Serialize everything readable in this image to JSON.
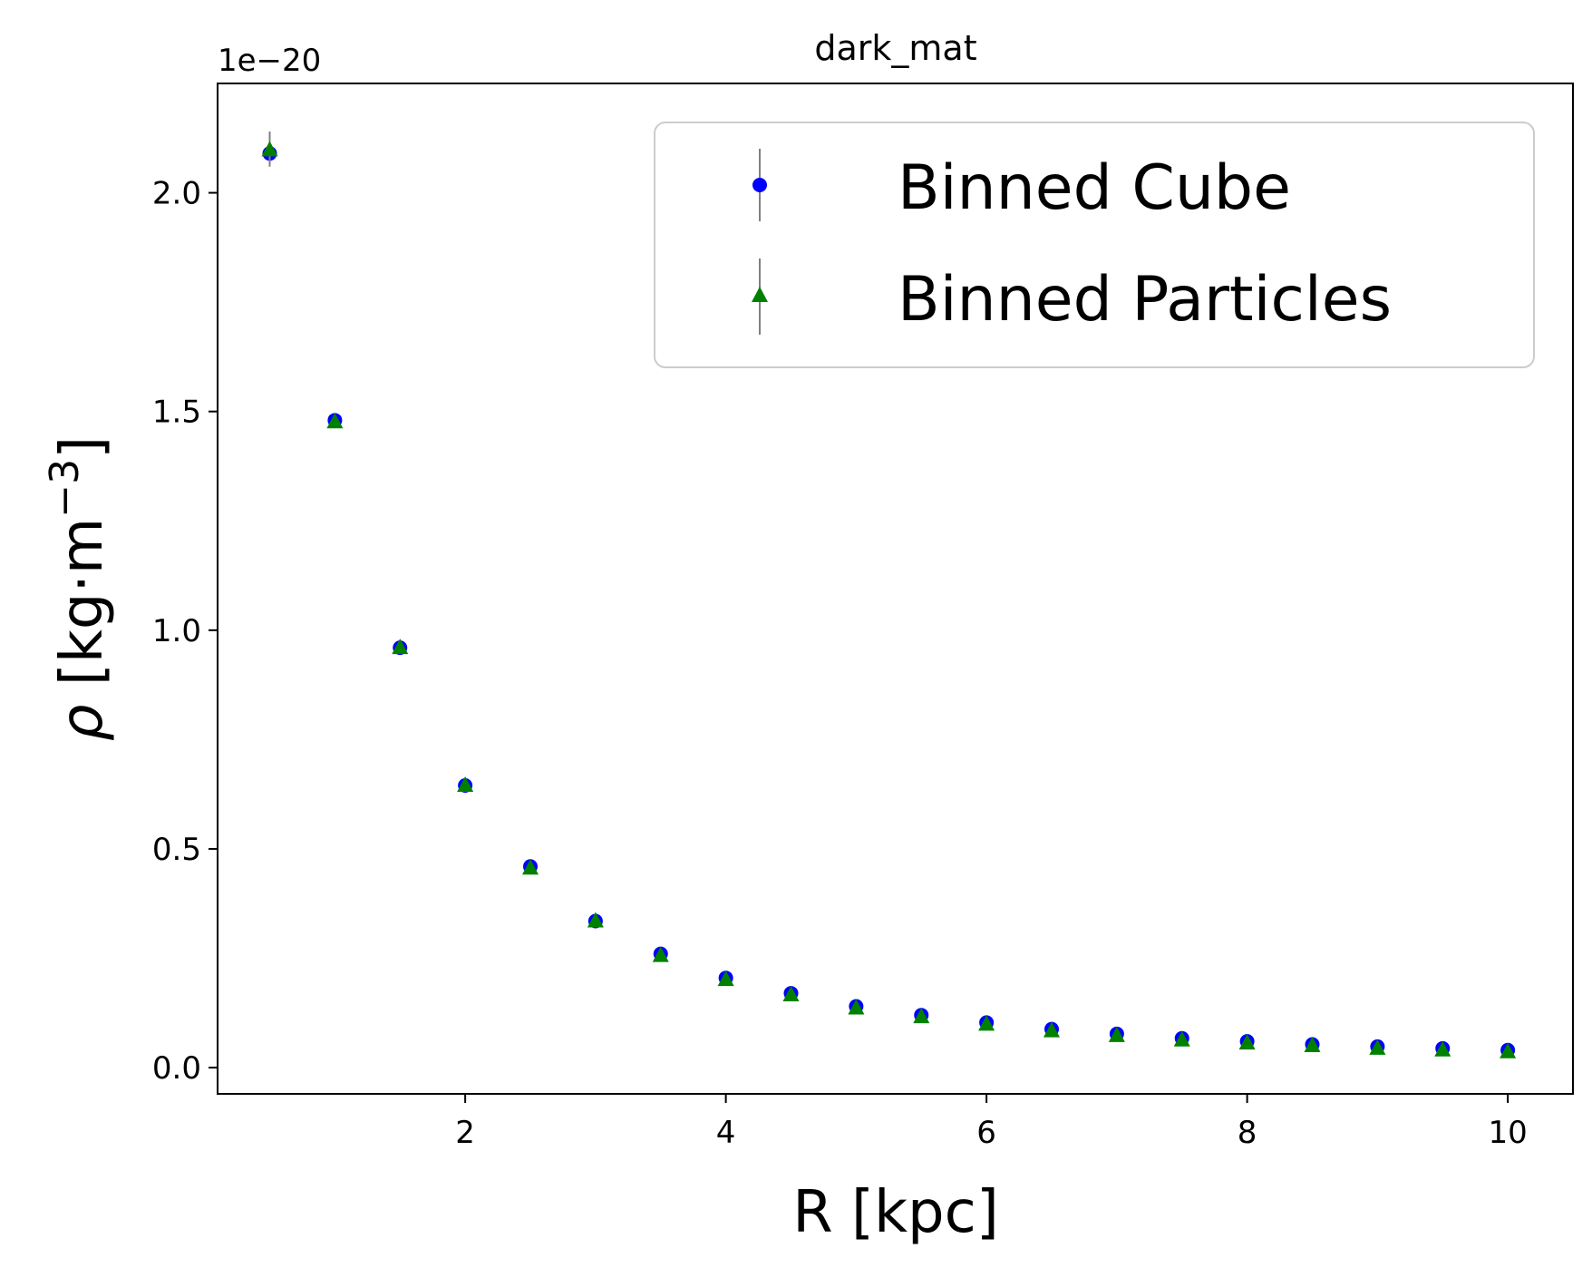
{
  "chart_data": {
    "type": "scatter",
    "title": "dark_mat",
    "xlabel": "R [kpc]",
    "ylabel_symbol": "ρ",
    "ylabel_units": "[kg·m",
    "ylabel_exponent": "−3",
    "ylabel_close": "]",
    "y_offset_label": "1e−20",
    "xlim": [
      0.1,
      10.5
    ],
    "ylim": [
      -0.06,
      2.25
    ],
    "x_ticks": [
      2,
      4,
      6,
      8,
      10
    ],
    "x_tick_labels": [
      "2",
      "4",
      "6",
      "8",
      "10"
    ],
    "y_ticks": [
      0.0,
      0.5,
      1.0,
      1.5,
      2.0
    ],
    "y_tick_labels": [
      "0.0",
      "0.5",
      "1.0",
      "1.5",
      "2.0"
    ],
    "grid": false,
    "legend_position": "top-right",
    "x": [
      0.5,
      1.0,
      1.5,
      2.0,
      2.5,
      3.0,
      3.5,
      4.0,
      4.5,
      5.0,
      5.5,
      6.0,
      6.5,
      7.0,
      7.5,
      8.0,
      8.5,
      9.0,
      9.5,
      10.0
    ],
    "series": [
      {
        "name": "Binned Cube",
        "marker": "circle",
        "color": "#0000ff",
        "values": [
          2.09,
          1.48,
          0.96,
          0.645,
          0.46,
          0.335,
          0.26,
          0.205,
          0.17,
          0.14,
          0.12,
          0.103,
          0.088,
          0.077,
          0.067,
          0.06,
          0.053,
          0.048,
          0.044,
          0.04
        ],
        "errors": [
          0.03,
          0.012,
          0.01,
          0.008,
          0.006,
          0.005,
          0.004,
          0.003,
          0.003,
          0.003,
          0.002,
          0.002,
          0.002,
          0.002,
          0.002,
          0.002,
          0.002,
          0.002,
          0.002,
          0.002
        ]
      },
      {
        "name": "Binned Particles",
        "marker": "triangle",
        "color": "#008000",
        "values": [
          2.1,
          1.478,
          0.962,
          0.647,
          0.458,
          0.337,
          0.258,
          0.203,
          0.168,
          0.138,
          0.118,
          0.101,
          0.086,
          0.075,
          0.065,
          0.058,
          0.052,
          0.046,
          0.042,
          0.038
        ],
        "errors": [
          0.04,
          0.012,
          0.01,
          0.01,
          0.006,
          0.005,
          0.004,
          0.003,
          0.003,
          0.003,
          0.002,
          0.002,
          0.002,
          0.002,
          0.002,
          0.002,
          0.002,
          0.002,
          0.002,
          0.002
        ]
      }
    ],
    "errorbar_color": "#808080",
    "legend_border_color": "#cccccc"
  }
}
